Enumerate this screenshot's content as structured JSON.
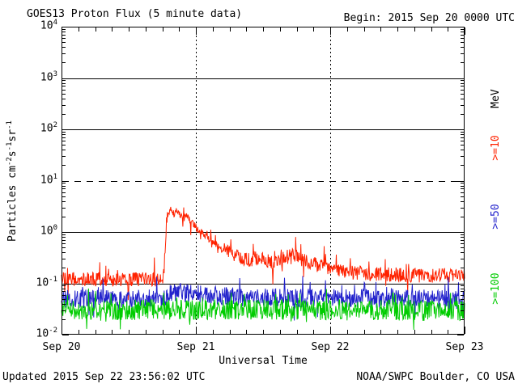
{
  "page": {
    "title": "GOES13 Proton Flux (5 minute data)",
    "begin_label": "Begin: 2015 Sep 20 0000 UTC",
    "updated_label": "Updated 2015 Sep 22 23:56:02 UTC",
    "source_label": "NOAA/SWPC Boulder, CO USA"
  },
  "chart_data": {
    "type": "line",
    "title": "GOES13 Proton Flux (5 minute data)",
    "xlabel": "Universal Time",
    "ylabel_parts": [
      [
        "text",
        "Particles cm"
      ],
      [
        "sup",
        "-2"
      ],
      [
        "text",
        "s"
      ],
      [
        "sup",
        "-1"
      ],
      [
        "text",
        "sr"
      ],
      [
        "sup",
        "-1"
      ]
    ],
    "x_axis": {
      "start_label": "Begin: 2015 Sep 20 0000 UTC",
      "days": 3,
      "tick_labels": [
        "Sep 20",
        "Sep 21",
        "Sep 22",
        "Sep 23"
      ],
      "minor_tick_hours": 3
    },
    "y_axis": {
      "scale": "log",
      "min": 0.01,
      "max": 10000,
      "decade_exponents": [
        4,
        3,
        2,
        1,
        0,
        -1,
        -2
      ]
    },
    "grid": {
      "hlines": [
        {
          "value": 1000,
          "style": "solid"
        },
        {
          "value": 100,
          "style": "solid"
        },
        {
          "value": 10,
          "style": "dashed"
        },
        {
          "value": 1,
          "style": "solid"
        },
        {
          "value": 0.1,
          "style": "solid"
        }
      ],
      "vlines": [
        {
          "day": 1,
          "style": "dotted"
        },
        {
          "day": 2,
          "style": "dotted"
        }
      ]
    },
    "legend": [
      {
        "label": "MeV",
        "color": "#000000"
      },
      {
        "label": ">=10",
        "color": "#ff2200"
      },
      {
        "label": ">=50",
        "color": "#2222cc"
      },
      {
        "label": ">=100",
        "color": "#00cc00"
      }
    ],
    "samples_per_day": 288,
    "series": [
      {
        "name": "protons_ge_10MeV",
        "legend": ">=10",
        "color": "#ff2200",
        "noise_log10": 0.14,
        "spike_prob": 0.06,
        "spike_log10": 0.3,
        "keypoints_day_flux": [
          [
            0,
            0.12
          ],
          [
            0.72,
            0.12
          ],
          [
            0.762,
            0.13
          ],
          [
            0.772,
            0.5
          ],
          [
            0.782,
            1.3
          ],
          [
            0.798,
            2.4
          ],
          [
            0.812,
            3.0
          ],
          [
            0.826,
            2.55
          ],
          [
            0.84,
            2.2
          ],
          [
            0.856,
            2.7
          ],
          [
            0.872,
            2.4
          ],
          [
            0.892,
            2.05
          ],
          [
            0.912,
            1.85
          ],
          [
            0.932,
            2.15
          ],
          [
            0.958,
            1.7
          ],
          [
            1.0,
            1.3
          ],
          [
            1.04,
            1.0
          ],
          [
            1.08,
            0.8
          ],
          [
            1.13,
            0.62
          ],
          [
            1.19,
            0.48
          ],
          [
            1.26,
            0.38
          ],
          [
            1.33,
            0.32
          ],
          [
            1.42,
            0.27
          ],
          [
            1.5,
            0.3
          ],
          [
            1.57,
            0.26
          ],
          [
            1.64,
            0.3
          ],
          [
            1.72,
            0.36
          ],
          [
            1.8,
            0.3
          ],
          [
            1.88,
            0.24
          ],
          [
            1.97,
            0.2
          ],
          [
            2.07,
            0.17
          ],
          [
            2.2,
            0.16
          ],
          [
            2.45,
            0.15
          ],
          [
            2.7,
            0.14
          ],
          [
            3.0,
            0.15
          ]
        ]
      },
      {
        "name": "protons_ge_50MeV",
        "legend": ">=50",
        "color": "#2222cc",
        "noise_log10": 0.18,
        "spike_prob": 0.06,
        "spike_log10": 0.32,
        "keypoints_day_flux": [
          [
            0,
            0.05
          ],
          [
            0.76,
            0.05
          ],
          [
            0.83,
            0.068
          ],
          [
            1.0,
            0.062
          ],
          [
            1.2,
            0.056
          ],
          [
            1.5,
            0.052
          ],
          [
            3.0,
            0.05
          ]
        ]
      },
      {
        "name": "protons_ge_100MeV",
        "legend": ">=100",
        "color": "#00cc00",
        "noise_log10": 0.2,
        "spike_prob": 0.06,
        "spike_log10": 0.3,
        "keypoints_day_flux": [
          [
            0,
            0.03
          ],
          [
            1.5,
            0.031
          ],
          [
            3.0,
            0.029
          ]
        ]
      }
    ]
  }
}
